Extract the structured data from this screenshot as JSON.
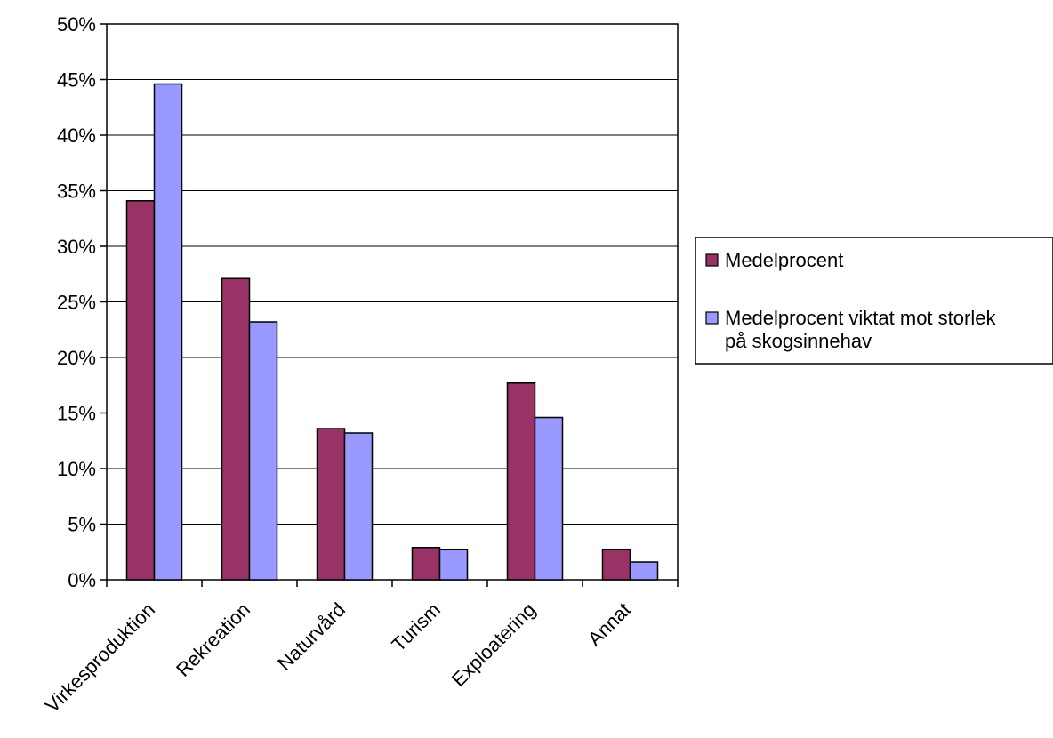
{
  "chart_data": {
    "type": "bar",
    "categories": [
      "Virkesproduktion",
      "Rekreation",
      "Naturvård",
      "Turism",
      "Exploatering",
      "Annat"
    ],
    "series": [
      {
        "name": "Medelprocent",
        "color": "#993366",
        "values": [
          0.341,
          0.271,
          0.136,
          0.029,
          0.177,
          0.027
        ]
      },
      {
        "name": "Medelprocent viktat mot storlek på skogsinnehav",
        "color": "#9999FF",
        "values": [
          0.446,
          0.232,
          0.132,
          0.027,
          0.146,
          0.016
        ]
      }
    ],
    "ylim": [
      0,
      0.5
    ],
    "yticks": [
      "0%",
      "5%",
      "10%",
      "15%",
      "20%",
      "25%",
      "30%",
      "35%",
      "40%",
      "45%",
      "50%"
    ],
    "grid": true,
    "legend_position": "right"
  },
  "legend": {
    "items": [
      {
        "label": "Medelprocent",
        "color": "#993366"
      },
      {
        "label_line1": "Medelprocent viktat mot storlek",
        "label_line2": "på skogsinnehav",
        "color": "#9999FF"
      }
    ]
  }
}
